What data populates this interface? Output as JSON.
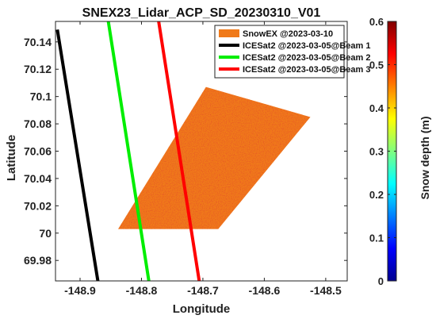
{
  "chart_data": {
    "type": "scatter",
    "title": "SNEX23_Lidar_ACP_SD_20230310_V01",
    "xlabel": "Longitude",
    "ylabel": "Latitude",
    "xlim": [
      -148.94,
      -148.465
    ],
    "ylim": [
      69.965,
      70.155
    ],
    "xticks": [
      -148.9,
      -148.8,
      -148.7,
      -148.6,
      -148.5
    ],
    "xtick_labels": [
      "-148.9",
      "-148.8",
      "-148.7",
      "-148.6",
      "-148.5"
    ],
    "yticks": [
      69.98,
      70.0,
      70.02,
      70.04,
      70.06,
      70.08,
      70.1,
      70.12,
      70.14
    ],
    "ytick_labels": [
      "69.98",
      "70",
      "70.02",
      "70.04",
      "70.06",
      "70.08",
      "70.1",
      "70.12",
      "70.14"
    ],
    "grid": false,
    "legend_position": "top-right",
    "swath": {
      "name": "SnowEX @2023-03-10",
      "dominant_color": "#f07a1a",
      "corners": [
        [
          -148.838,
          70.003
        ],
        [
          -148.675,
          70.003
        ],
        [
          -148.525,
          70.085
        ],
        [
          -148.695,
          70.107
        ]
      ]
    },
    "series": [
      {
        "name": "ICESat2 @2023-03-05@Beam 1",
        "color": "#000000",
        "x": [
          -148.937,
          -148.871
        ],
        "y": [
          70.149,
          69.965
        ]
      },
      {
        "name": "ICESat2 @2023-03-05@Beam 2",
        "color": "#00ee00",
        "x": [
          -148.854,
          -148.788
        ],
        "y": [
          70.155,
          69.965
        ]
      },
      {
        "name": "ICESat2 @2023-03-05@Beam 3",
        "color": "#ff0000",
        "x": [
          -148.772,
          -148.706
        ],
        "y": [
          70.155,
          69.965
        ]
      }
    ],
    "colorbar": {
      "label": "Snow depth (m)",
      "min": 0,
      "max": 0.6,
      "ticks": [
        0,
        0.1,
        0.2,
        0.3,
        0.4,
        0.5,
        0.6
      ],
      "tick_labels": [
        "0",
        "0.1",
        "0.2",
        "0.3",
        "0.4",
        "0.5",
        "0.6"
      ],
      "colormap": "jet"
    }
  }
}
